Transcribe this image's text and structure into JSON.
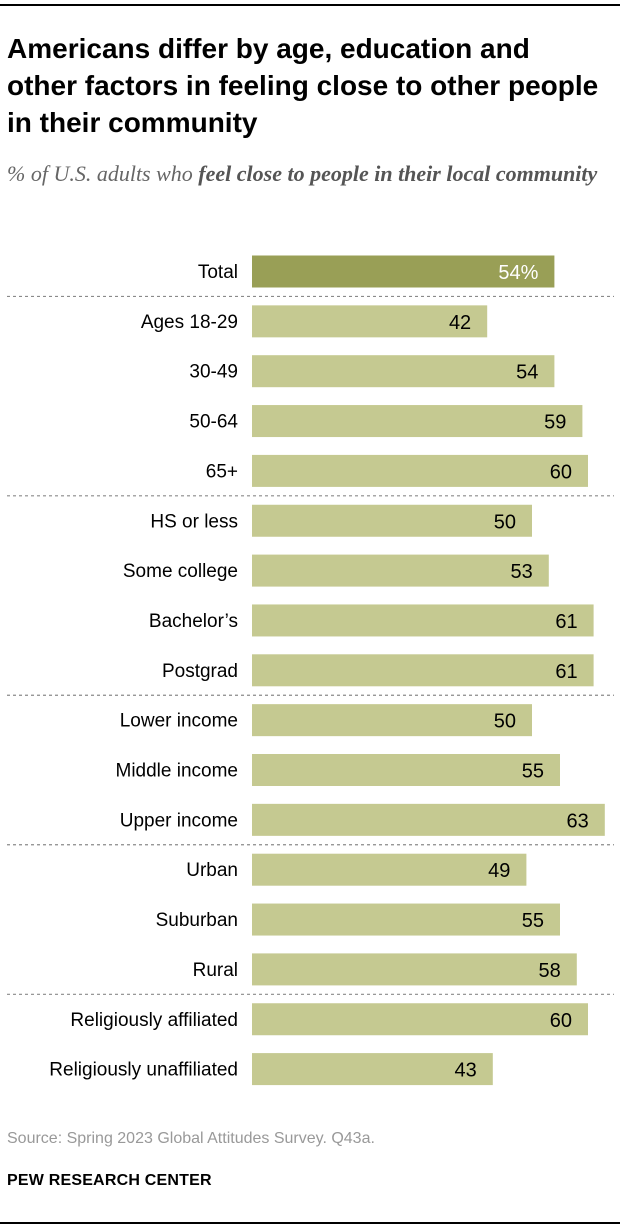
{
  "title": "Americans differ by age, education and other factors in feeling close to other people in their community",
  "subtitle_lead": "% of U.S. adults who ",
  "subtitle_bold": "feel close to people in their local community",
  "source": "Source: Spring 2023 Global Attitudes Survey. Q43a.",
  "credit": "PEW RESEARCH CENTER",
  "colors": {
    "total_bar": "#999f56",
    "bar": "#c5c991",
    "divider": "#8a8a8a",
    "total_label": "#ffffff",
    "label": "#000000"
  },
  "chart_data": {
    "type": "bar",
    "orientation": "horizontal",
    "categories": [
      "Total",
      "Ages 18-29",
      "30-49",
      "50-64",
      "65+",
      "HS or less",
      "Some college",
      "Bachelor’s",
      "Postgrad",
      "Lower income",
      "Middle income",
      "Upper income",
      "Urban",
      "Suburban",
      "Rural",
      "Religiously affiliated",
      "Religiously unaffiliated"
    ],
    "values": [
      54,
      42,
      54,
      59,
      60,
      50,
      53,
      61,
      61,
      50,
      55,
      63,
      49,
      55,
      58,
      60,
      43
    ],
    "value_labels": [
      "54%",
      "42",
      "54",
      "59",
      "60",
      "50",
      "53",
      "61",
      "61",
      "50",
      "55",
      "63",
      "49",
      "55",
      "58",
      "60",
      "43"
    ],
    "groups": [
      [
        0
      ],
      [
        1,
        2,
        3,
        4
      ],
      [
        5,
        6,
        7,
        8
      ],
      [
        9,
        10,
        11
      ],
      [
        12,
        13,
        14
      ],
      [
        15,
        16
      ]
    ],
    "xlim": [
      0,
      100
    ]
  }
}
